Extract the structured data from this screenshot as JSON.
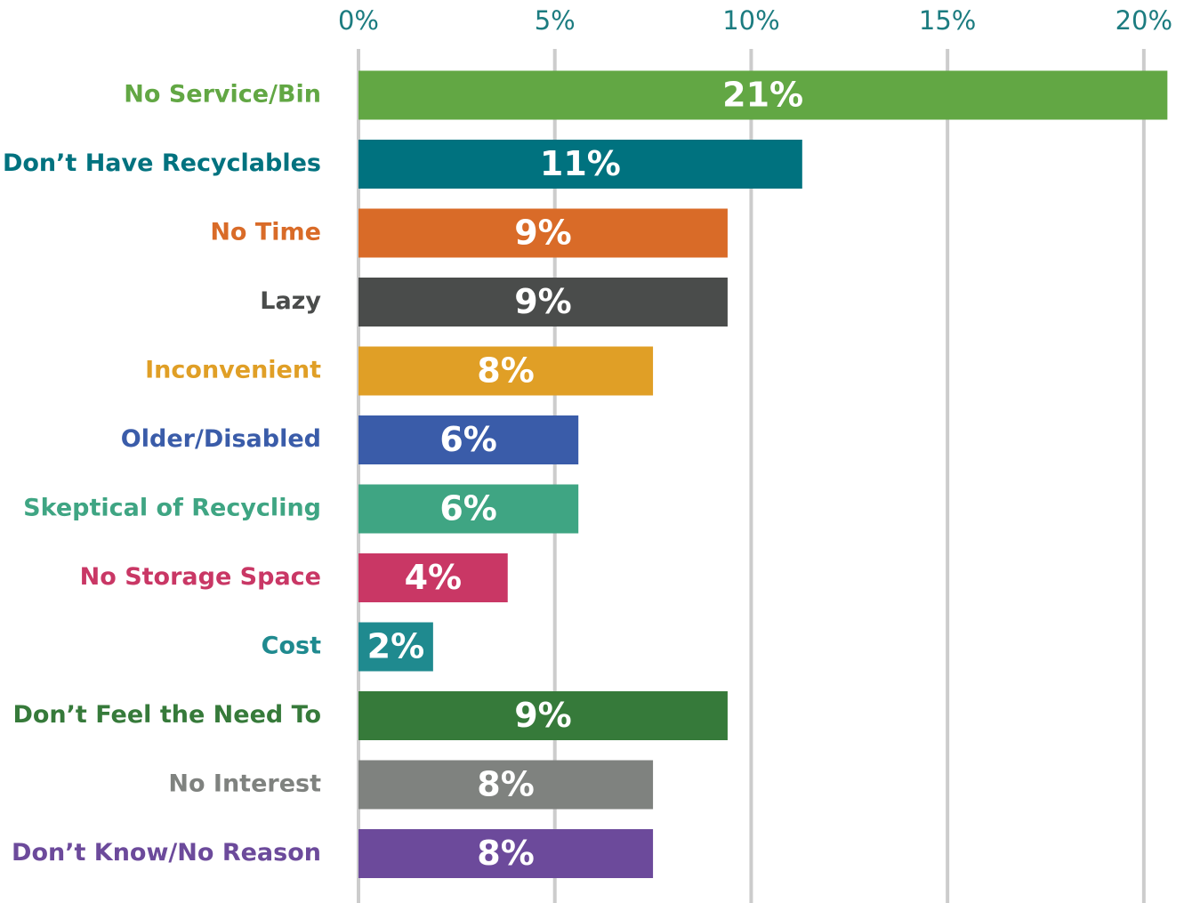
{
  "chart_data": {
    "type": "barh",
    "categories": [
      "No Service/Bin",
      "Don’t Have Recyclables",
      "No Time",
      "Lazy",
      "Inconvenient",
      "Older/Disabled",
      "Skeptical of Recycling",
      "No Storage Space",
      "Cost",
      "Don’t Feel the Need To",
      "No Interest",
      "Don’t Know/No Reason"
    ],
    "values": [
      20.6,
      11.3,
      9.4,
      9.4,
      7.5,
      5.6,
      5.6,
      3.8,
      1.9,
      9.4,
      7.5,
      7.5
    ],
    "value_labels": [
      "21%",
      "11%",
      "9%",
      "9%",
      "8%",
      "6%",
      "6%",
      "4%",
      "2%",
      "9%",
      "8%",
      "8%"
    ],
    "colors": [
      "#62a744",
      "#00727f",
      "#d96b28",
      "#4a4c4b",
      "#e09f26",
      "#3a5ca9",
      "#3fa583",
      "#c93765",
      "#1f8a8f",
      "#367a3a",
      "#7f827f",
      "#6c4a9b"
    ],
    "xlim": [
      0,
      21
    ],
    "xticks": [
      {
        "value": 0,
        "label": "0%"
      },
      {
        "value": 5,
        "label": "5%"
      },
      {
        "value": 10,
        "label": "10%"
      },
      {
        "value": 15,
        "label": "15%"
      },
      {
        "value": 20,
        "label": "20%"
      }
    ],
    "grid": true
  }
}
